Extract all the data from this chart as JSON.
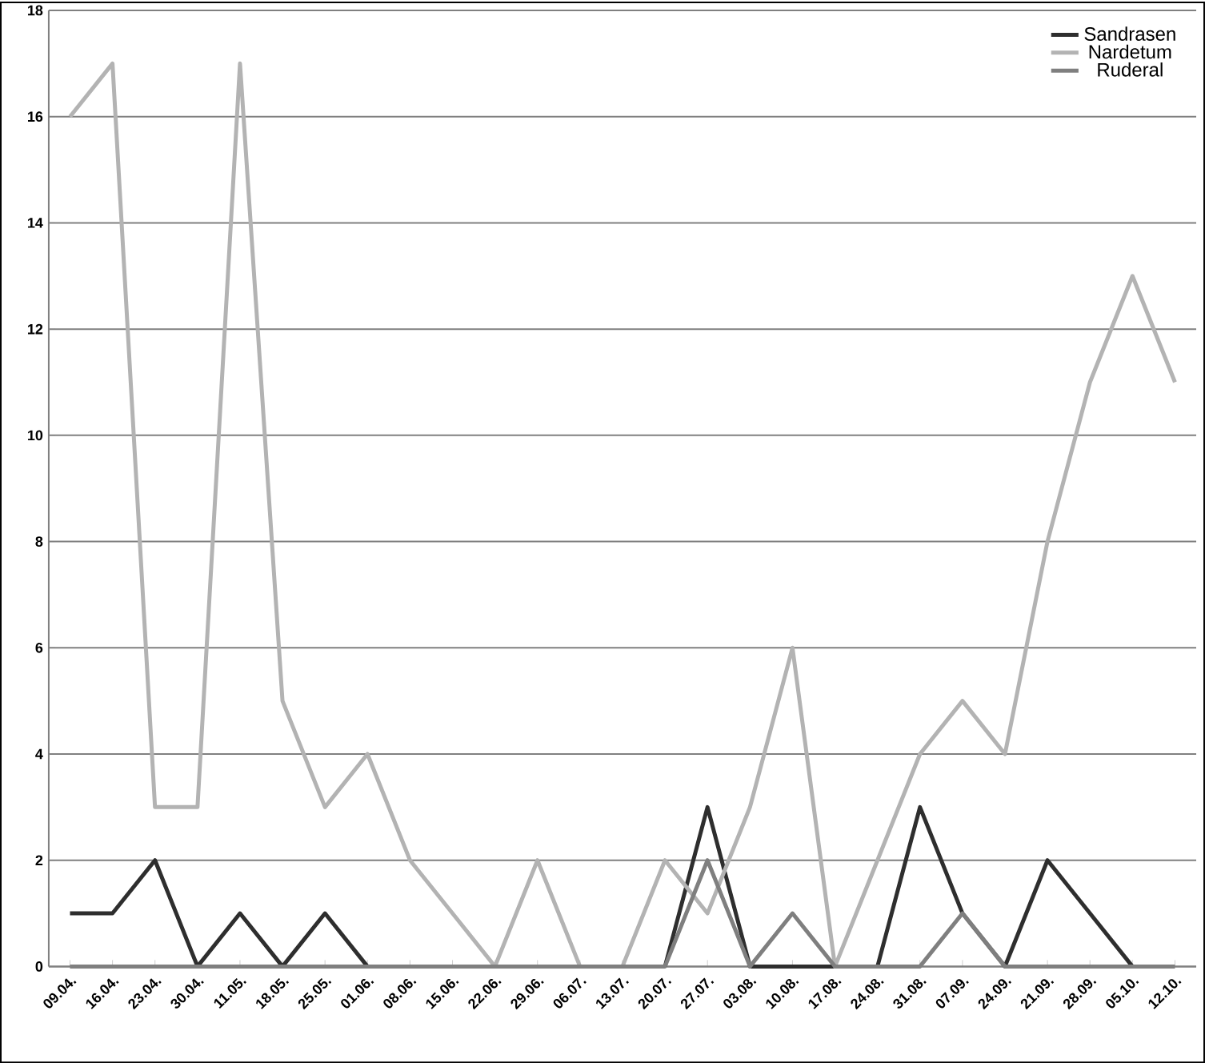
{
  "chart_data": {
    "type": "line",
    "categories": [
      "09.04.",
      "16.04.",
      "23.04.",
      "30.04.",
      "11.05.",
      "18.05.",
      "25.05.",
      "01.06.",
      "08.06.",
      "15.06.",
      "22.06.",
      "29.06.",
      "06.07.",
      "13.07.",
      "20.07.",
      "27.07.",
      "03.08.",
      "10.08.",
      "17.08.",
      "24.08.",
      "31.08.",
      "07.09.",
      "24.09.",
      "21.09.",
      "28.09.",
      "05.10.",
      "12.10."
    ],
    "series": [
      {
        "name": "Sandrasen",
        "color": "#2e2e2e",
        "values": [
          1,
          1,
          2,
          0,
          1,
          0,
          1,
          0,
          null,
          null,
          null,
          null,
          null,
          null,
          0,
          3,
          0,
          0,
          0,
          0,
          3,
          1,
          0,
          2,
          1,
          0,
          null
        ]
      },
      {
        "name": "Nardetum",
        "color": "#b3b3b3",
        "values": [
          16,
          17,
          3,
          3,
          17,
          5,
          3,
          4,
          2,
          1,
          0,
          2,
          0,
          0,
          2,
          1,
          3,
          6,
          0,
          2,
          4,
          5,
          4,
          8,
          11,
          13,
          11
        ]
      },
      {
        "name": "Ruderal",
        "color": "#7f7f7f",
        "values": [
          0,
          0,
          0,
          0,
          0,
          0,
          0,
          0,
          0,
          0,
          0,
          0,
          0,
          0,
          0,
          2,
          0,
          1,
          0,
          0,
          0,
          1,
          0,
          0,
          0,
          0,
          0
        ]
      }
    ],
    "ylim": [
      0,
      18
    ],
    "yticks": [
      0,
      2,
      4,
      6,
      8,
      10,
      12,
      14,
      16,
      18
    ],
    "grid": "y",
    "legend": "top right",
    "marker": "none",
    "line_style": "solid"
  }
}
